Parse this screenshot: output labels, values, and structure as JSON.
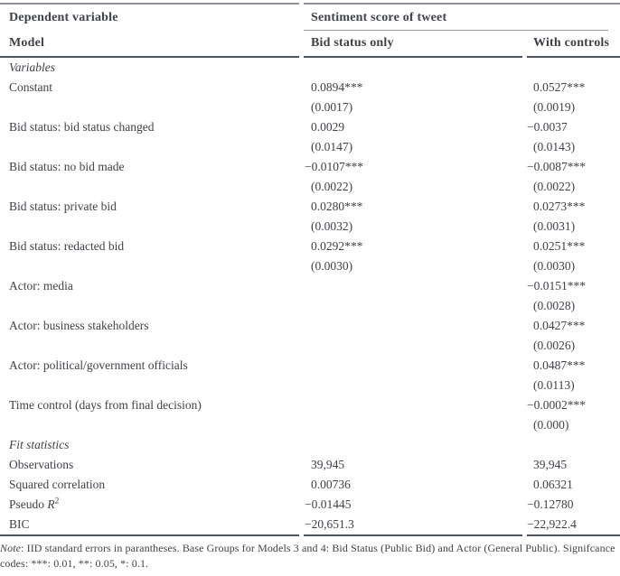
{
  "colors": {
    "background": "#ffffff",
    "text": "#3e4247",
    "rule_light": "#8f9298",
    "rule_dark": "#4e545c"
  },
  "table": {
    "header": {
      "dependent_variable_label": "Dependent variable",
      "spanner": "Sentiment score of tweet",
      "model_label": "Model",
      "columns": [
        "Bid status only",
        "With controls"
      ]
    },
    "rows": [
      {
        "type": "section",
        "label": "Variables"
      },
      {
        "type": "coef",
        "label": "Constant",
        "m1": "0.0894***",
        "m2": "0.0527***"
      },
      {
        "type": "se",
        "label": "",
        "m1": "(0.0017)",
        "m2": "(0.0019)"
      },
      {
        "type": "coef",
        "label": "Bid status: bid status changed",
        "m1": "0.0029",
        "m2": "−0.0037"
      },
      {
        "type": "se",
        "label": "",
        "m1": "(0.0147)",
        "m2": "(0.0143)"
      },
      {
        "type": "coef",
        "label": "Bid status: no bid made",
        "m1": "−0.0107***",
        "m2": "−0.0087***"
      },
      {
        "type": "se",
        "label": "",
        "m1": "(0.0022)",
        "m2": "(0.0022)"
      },
      {
        "type": "coef",
        "label": "Bid status: private bid",
        "m1": "0.0280***",
        "m2": "0.0273***"
      },
      {
        "type": "se",
        "label": "",
        "m1": "(0.0032)",
        "m2": "(0.0031)"
      },
      {
        "type": "coef",
        "label": "Bid status: redacted bid",
        "m1": "0.0292***",
        "m2": "0.0251***"
      },
      {
        "type": "se",
        "label": "",
        "m1": "(0.0030)",
        "m2": "(0.0030)"
      },
      {
        "type": "coef",
        "label": "Actor: media",
        "m1": "",
        "m2": "−0.0151***"
      },
      {
        "type": "se",
        "label": "",
        "m1": "",
        "m2": "(0.0028)"
      },
      {
        "type": "coef",
        "label": "Actor: business stakeholders",
        "m1": "",
        "m2": "0.0427***"
      },
      {
        "type": "se",
        "label": "",
        "m1": "",
        "m2": "(0.0026)"
      },
      {
        "type": "coef",
        "label": "Actor: political/government officials",
        "m1": "",
        "m2": "0.0487***"
      },
      {
        "type": "se",
        "label": "",
        "m1": "",
        "m2": "(0.0113)"
      },
      {
        "type": "coef",
        "label": "Time control (days from final decision)",
        "m1": "",
        "m2": "−0.0002***"
      },
      {
        "type": "se",
        "label": "",
        "m1": "",
        "m2": "(0.000)"
      },
      {
        "type": "section",
        "label": "Fit statistics"
      },
      {
        "type": "stat",
        "label": "Observations",
        "m1": "39,945",
        "m2": "39,945"
      },
      {
        "type": "stat",
        "label": "Squared correlation",
        "m1": "0.00736",
        "m2": "0.06321"
      },
      {
        "type": "stat",
        "label": "Pseudo ",
        "symbol": "R",
        "sup": "2",
        "m1": "−0.01445",
        "m2": "−0.12780"
      },
      {
        "type": "stat",
        "label": "BIC",
        "m1": "−20,651.3",
        "m2": "−22,922.4"
      }
    ]
  },
  "notes": {
    "label": "Note",
    "text": ": IID standard errors in parantheses. Base Groups for Models 3 and 4: Bid Status (Public Bid) and Actor (General Public). Signifcance codes: ***: 0.01, **: 0.05, *: 0.1."
  }
}
